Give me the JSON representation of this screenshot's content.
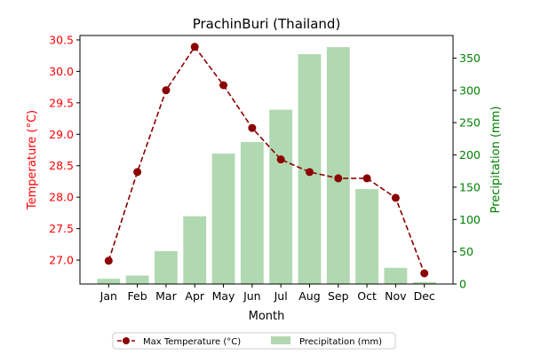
{
  "chart_data": {
    "type": "bar+line",
    "title": "PrachinBuri (Thailand)",
    "xlabel": "Month",
    "categories": [
      "Jan",
      "Feb",
      "Mar",
      "Apr",
      "May",
      "Jun",
      "Jul",
      "Aug",
      "Sep",
      "Oct",
      "Nov",
      "Dec"
    ],
    "series": [
      {
        "name": "Max Temperature (°C)",
        "type": "line",
        "axis": "left",
        "color": "#8b0000",
        "values": [
          26.99,
          28.4,
          29.7,
          30.39,
          29.78,
          29.1,
          28.6,
          28.4,
          28.3,
          28.3,
          27.99,
          26.79
        ]
      },
      {
        "name": "Precipitation (mm)",
        "type": "bar",
        "axis": "right",
        "color": "#a8d5a8",
        "values": [
          8,
          13,
          51,
          105,
          202,
          220,
          270,
          356,
          367,
          147,
          25,
          3
        ]
      }
    ],
    "y_left": {
      "label": "Temperature (°C)",
      "color": "#ff0000",
      "ylim": [
        26.62,
        30.57
      ],
      "ticks": [
        "27.0",
        "27.5",
        "28.0",
        "28.5",
        "29.0",
        "29.5",
        "30.0",
        "30.5"
      ]
    },
    "y_right": {
      "label": "Precipitation (mm)",
      "color": "#008000",
      "ylim": [
        0,
        385
      ],
      "ticks": [
        "0",
        "50",
        "100",
        "150",
        "200",
        "250",
        "300",
        "350"
      ]
    },
    "legend": {
      "placement": "bottom-center",
      "entries": [
        "Max Temperature (°C)",
        "Precipitation (mm)"
      ]
    },
    "grid": false
  }
}
